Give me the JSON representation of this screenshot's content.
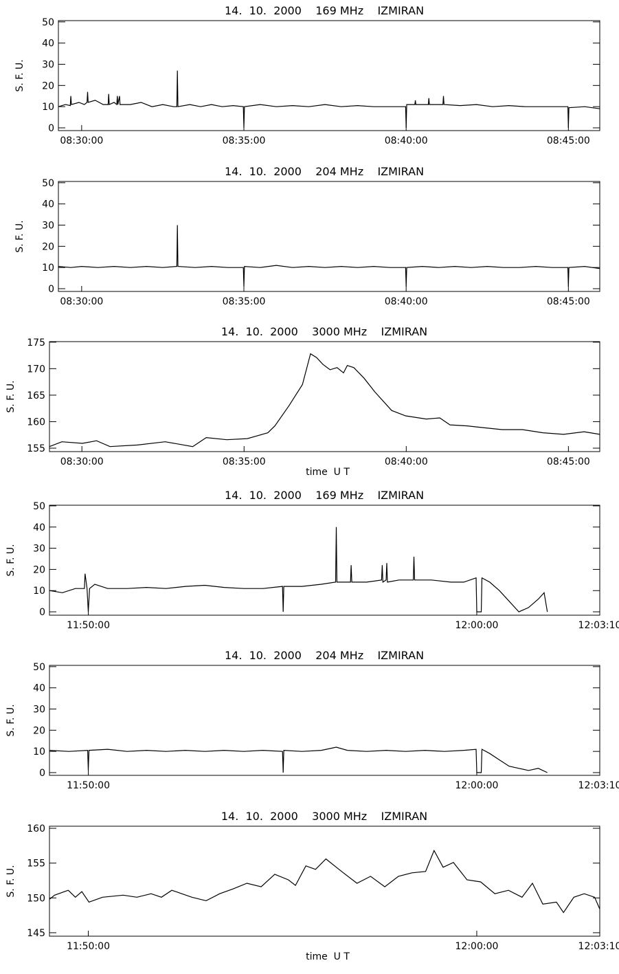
{
  "chart_data": [
    {
      "type": "line",
      "title": "14.  10.  2000    169 MHz    IZMIRAN",
      "ylabel": "S. F. U.",
      "color": "#000000",
      "x": [
        "08:29:17",
        "08:29:30",
        "08:29:39",
        "08:29:40",
        "08:29:41",
        "08:29:55",
        "08:30:05",
        "08:30:10",
        "08:30:11",
        "08:30:12",
        "08:30:25",
        "08:30:40",
        "08:30:49",
        "08:30:50",
        "08:30:51",
        "08:31:00",
        "08:31:05",
        "08:31:06",
        "08:31:07",
        "08:31:10",
        "08:31:11",
        "08:31:30",
        "08:31:50",
        "08:32:10",
        "08:32:30",
        "08:32:50",
        "08:32:56",
        "08:32:57",
        "08:32:58",
        "08:33:20",
        "08:33:40",
        "08:34:00",
        "08:34:20",
        "08:34:40",
        "08:34:59",
        "08:35:00",
        "08:35:01",
        "08:35:30",
        "08:36:00",
        "08:36:30",
        "08:37:00",
        "08:37:30",
        "08:38:00",
        "08:38:30",
        "08:39:00",
        "08:39:30",
        "08:39:59",
        "08:40:00",
        "08:40:01",
        "08:40:16",
        "08:40:17",
        "08:40:18",
        "08:40:41",
        "08:40:42",
        "08:40:43",
        "08:41:08",
        "08:41:09",
        "08:41:10",
        "08:41:40",
        "08:42:10",
        "08:42:40",
        "08:43:10",
        "08:43:40",
        "08:44:10",
        "08:44:40",
        "08:44:59",
        "08:45:00",
        "08:45:01",
        "08:45:30",
        "08:45:58"
      ],
      "values": [
        10,
        11,
        10.5,
        15,
        11,
        12,
        11,
        12,
        17,
        12,
        13,
        11,
        11,
        16,
        11,
        12,
        11,
        15,
        11,
        15,
        11,
        11,
        12,
        10,
        11,
        10,
        10,
        27,
        10,
        11,
        10,
        11,
        10,
        10.5,
        10,
        0,
        10,
        11,
        10,
        10.5,
        10,
        11,
        10,
        10.5,
        10,
        10,
        10,
        0,
        11,
        11,
        13,
        11,
        11,
        14,
        11,
        11,
        15,
        11,
        10.5,
        11,
        10,
        10.5,
        10,
        10,
        10,
        10,
        0,
        9.5,
        10,
        9
      ],
      "xlim": [
        "08:29:17",
        "08:45:58"
      ],
      "xticks": [
        "08:30:00",
        "08:35:00",
        "08:40:00",
        "08:45:00"
      ],
      "ylim": [
        -1.3,
        50.6
      ],
      "yticks": [
        0,
        10,
        20,
        30,
        40,
        50
      ]
    },
    {
      "type": "line",
      "title": "14.  10.  2000    204 MHz    IZMIRAN",
      "ylabel": "S. F. U.",
      "color": "#000000",
      "x": [
        "08:29:17",
        "08:29:40",
        "08:30:00",
        "08:30:30",
        "08:31:00",
        "08:31:30",
        "08:32:00",
        "08:32:30",
        "08:32:56",
        "08:32:57",
        "08:32:58",
        "08:33:30",
        "08:34:00",
        "08:34:30",
        "08:34:59",
        "08:35:00",
        "08:35:01",
        "08:35:30",
        "08:36:00",
        "08:36:30",
        "08:37:00",
        "08:37:30",
        "08:38:00",
        "08:38:30",
        "08:39:00",
        "08:39:30",
        "08:39:59",
        "08:40:00",
        "08:40:01",
        "08:40:30",
        "08:41:00",
        "08:41:30",
        "08:42:00",
        "08:42:30",
        "08:43:00",
        "08:43:30",
        "08:44:00",
        "08:44:30",
        "08:44:59",
        "08:45:00",
        "08:45:01",
        "08:45:30",
        "08:45:58"
      ],
      "values": [
        10.5,
        10,
        10.5,
        10,
        10.5,
        10,
        10.5,
        10,
        10.5,
        30,
        10.5,
        10,
        10.5,
        10,
        10,
        1,
        10.5,
        10,
        11,
        10,
        10.5,
        10,
        10.5,
        10,
        10.5,
        10,
        10,
        1,
        10,
        10.5,
        10,
        10.5,
        10,
        10.5,
        10,
        10,
        10.5,
        10,
        10,
        1,
        10,
        10.5,
        9.5
      ],
      "xlim": [
        "08:29:17",
        "08:45:58"
      ],
      "xticks": [
        "08:30:00",
        "08:35:00",
        "08:40:00",
        "08:45:00"
      ],
      "ylim": [
        -1.3,
        50.6
      ],
      "yticks": [
        0,
        10,
        20,
        30,
        40,
        50
      ]
    },
    {
      "type": "line",
      "title": "14.  10.  2000    3000 MHz    IZMIRAN",
      "ylabel": "S. F. U.",
      "xlabel": "time  U T",
      "color": "#000000",
      "x": [
        "08:29:00",
        "08:29:23",
        "08:30:01",
        "08:30:27",
        "08:30:52",
        "08:31:43",
        "08:32:34",
        "08:33:25",
        "08:33:50",
        "08:34:28",
        "08:35:06",
        "08:35:44",
        "08:35:57",
        "08:36:23",
        "08:36:48",
        "08:37:03",
        "08:37:14",
        "08:37:26",
        "08:37:39",
        "08:37:52",
        "08:38:04",
        "08:38:11",
        "08:38:23",
        "08:38:42",
        "08:39:02",
        "08:39:33",
        "08:39:59",
        "08:40:37",
        "08:41:02",
        "08:41:21",
        "08:41:53",
        "08:42:19",
        "08:42:57",
        "08:43:35",
        "08:44:13",
        "08:44:51",
        "08:45:29",
        "08:45:58"
      ],
      "values": [
        155.3,
        156.2,
        155.9,
        156.4,
        155.3,
        155.6,
        156.2,
        155.3,
        157,
        156.6,
        156.8,
        157.9,
        159.2,
        163,
        167,
        172.8,
        172.1,
        170.8,
        169.8,
        170.2,
        169.2,
        170.6,
        170.2,
        168.2,
        165.6,
        162.1,
        161.1,
        160.5,
        160.7,
        159.4,
        159.2,
        158.9,
        158.5,
        158.5,
        157.9,
        157.6,
        158.1,
        157.6
      ],
      "xlim": [
        "08:29:00",
        "08:45:58"
      ],
      "xticks": [
        "08:30:00",
        "08:35:00",
        "08:40:00",
        "08:45:00"
      ],
      "ylim": [
        154.35,
        175.1
      ],
      "yticks": [
        155,
        160,
        165,
        170,
        175
      ]
    },
    {
      "type": "line",
      "title": "14.  10.  2000    169 MHz    IZMIRAN",
      "ylabel": "S. F. U.",
      "color": "#000000",
      "x": [
        "11:49:00",
        "11:49:20",
        "11:49:40",
        "11:49:54",
        "11:49:55",
        "11:49:58",
        "11:50:00",
        "11:50:02",
        "11:50:10",
        "11:50:30",
        "11:51:00",
        "11:51:30",
        "11:52:00",
        "11:52:30",
        "11:53:00",
        "11:53:30",
        "11:54:00",
        "11:54:30",
        "11:55:00",
        "11:55:01",
        "11:55:02",
        "11:55:30",
        "11:56:00",
        "11:56:22",
        "11:56:23",
        "11:56:24",
        "11:56:45",
        "11:56:46",
        "11:56:47",
        "11:57:10",
        "11:57:33",
        "11:57:34",
        "11:57:35",
        "11:57:40",
        "11:57:41",
        "11:57:42",
        "11:58:00",
        "11:58:22",
        "11:58:23",
        "11:58:24",
        "11:58:50",
        "11:59:20",
        "11:59:40",
        "11:59:59",
        "12:00:00",
        "12:00:07",
        "12:00:08",
        "12:00:20",
        "12:00:35",
        "12:00:50",
        "12:01:05",
        "12:01:20",
        "12:01:35",
        "12:01:44",
        "12:01:49"
      ],
      "values": [
        10,
        9,
        11,
        11,
        18,
        11,
        0,
        11,
        13,
        11,
        11,
        11.5,
        11,
        12,
        12.5,
        11.5,
        11,
        11,
        12,
        0,
        12,
        12,
        13,
        14,
        40,
        14,
        14,
        22,
        14,
        14,
        15,
        22,
        14,
        15,
        23,
        14,
        15,
        15,
        26,
        15,
        15,
        14,
        14,
        16,
        0,
        0,
        16,
        14,
        10,
        5,
        0,
        2,
        6,
        9,
        0
      ],
      "xlim": [
        "11:49:00",
        "12:03:10"
      ],
      "xticks": [
        "11:50:00",
        "12:00:00",
        "12:03:10"
      ],
      "ylim": [
        -1.6,
        50.3
      ],
      "yticks": [
        0,
        10,
        20,
        30,
        40,
        50
      ]
    },
    {
      "type": "line",
      "title": "14.  10.  2000    204 MHz    IZMIRAN",
      "ylabel": "S. F. U.",
      "color": "#000000",
      "x": [
        "11:49:00",
        "11:49:30",
        "11:49:59",
        "11:50:00",
        "11:50:01",
        "11:50:30",
        "11:51:00",
        "11:51:30",
        "11:52:00",
        "11:52:30",
        "11:53:00",
        "11:53:30",
        "11:54:00",
        "11:54:30",
        "11:55:00",
        "11:55:01",
        "11:55:02",
        "11:55:30",
        "11:56:00",
        "11:56:23",
        "11:56:40",
        "11:57:10",
        "11:57:40",
        "11:58:10",
        "11:58:40",
        "11:59:10",
        "11:59:40",
        "11:59:59",
        "12:00:00",
        "12:00:07",
        "12:00:08",
        "12:00:20",
        "12:00:35",
        "12:00:50",
        "12:01:05",
        "12:01:20",
        "12:01:35",
        "12:01:49"
      ],
      "values": [
        10.5,
        10,
        10.5,
        1,
        10.5,
        11,
        10,
        10.5,
        10,
        10.5,
        10,
        10.5,
        10,
        10.5,
        10,
        0,
        10.5,
        10,
        10.5,
        12,
        10.5,
        10,
        10.5,
        10,
        10.5,
        10,
        10.5,
        11,
        0,
        0,
        11,
        9,
        6,
        3,
        2,
        1,
        2,
        0
      ],
      "xlim": [
        "11:49:00",
        "12:03:10"
      ],
      "xticks": [
        "11:50:00",
        "12:00:00",
        "12:03:10"
      ],
      "ylim": [
        -1.3,
        50.6
      ],
      "yticks": [
        0,
        10,
        20,
        30,
        40,
        50
      ]
    },
    {
      "type": "line",
      "title": "14.  10.  2000    3000 MHz    IZMIRAN",
      "ylabel": "S. F. U.",
      "xlabel": "time  U T",
      "color": "#000000",
      "x": [
        "11:49:00",
        "11:49:08",
        "11:49:29",
        "11:49:40",
        "11:49:50",
        "11:50:01",
        "11:50:22",
        "11:50:54",
        "11:51:15",
        "11:51:37",
        "11:51:53",
        "11:52:09",
        "11:52:40",
        "11:53:02",
        "11:53:23",
        "11:53:44",
        "11:54:05",
        "11:54:27",
        "11:54:48",
        "11:55:09",
        "11:55:20",
        "11:55:36",
        "11:55:51",
        "11:56:07",
        "11:56:23",
        "11:56:34",
        "11:56:55",
        "11:57:16",
        "11:57:38",
        "11:57:59",
        "11:58:20",
        "11:58:41",
        "11:58:54",
        "11:59:08",
        "11:59:24",
        "11:59:45",
        "12:00:06",
        "12:00:28",
        "12:00:49",
        "12:01:10",
        "12:01:26",
        "12:01:42",
        "12:02:03",
        "12:02:14",
        "12:02:30",
        "12:02:46",
        "12:03:02",
        "12:03:10"
      ],
      "values": [
        149.8,
        150.4,
        151.1,
        150.1,
        150.9,
        149.4,
        150.1,
        150.4,
        150.1,
        150.6,
        150.1,
        151.1,
        150.1,
        149.6,
        150.6,
        151.3,
        152.1,
        151.6,
        153.4,
        152.6,
        151.8,
        154.6,
        154.1,
        155.6,
        154.4,
        153.6,
        152.1,
        153.1,
        151.6,
        153.1,
        153.6,
        153.8,
        156.8,
        154.4,
        155.1,
        152.6,
        152.3,
        150.6,
        151.1,
        150.1,
        152.1,
        149.1,
        149.4,
        147.9,
        150.1,
        150.6,
        150.1,
        148.4
      ],
      "xlim": [
        "11:49:00",
        "12:03:10"
      ],
      "xticks": [
        "11:50:00",
        "12:00:00",
        "12:03:10"
      ],
      "ylim": [
        144.5,
        160.3
      ],
      "yticks": [
        145,
        150,
        155,
        160
      ]
    }
  ]
}
